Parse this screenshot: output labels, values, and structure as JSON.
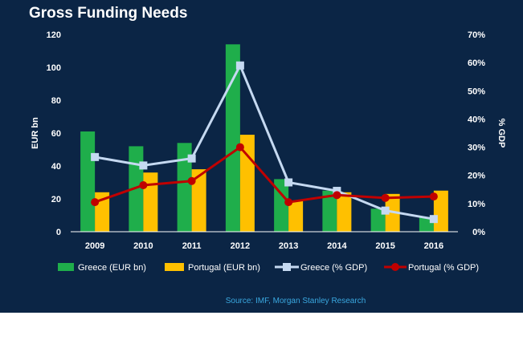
{
  "chart_data": {
    "type": "bar",
    "title": "Gross Funding Needs",
    "categories": [
      "2009",
      "2010",
      "2011",
      "2012",
      "2013",
      "2014",
      "2015",
      "2016"
    ],
    "bar_series": [
      {
        "name": "Greece (EUR bn)",
        "values": [
          61,
          52,
          54,
          114,
          32,
          25,
          14,
          9
        ]
      },
      {
        "name": "Portugal (EUR bn)",
        "values": [
          24,
          36,
          38,
          59,
          19,
          24,
          23,
          25
        ]
      }
    ],
    "line_series": [
      {
        "name": "Greece (% GDP)",
        "values": [
          26.5,
          23.5,
          26,
          59,
          17.5,
          14.5,
          7.5,
          4.5
        ]
      },
      {
        "name": "Portugal (% GDP)",
        "values": [
          10.5,
          16.5,
          18,
          30,
          10.5,
          13,
          12,
          12.5
        ]
      }
    ],
    "ylabel_left": "EUR bn",
    "ylabel_right": "% GDP",
    "ylim_left": [
      0,
      120
    ],
    "ylim_right": [
      0,
      70
    ],
    "yticks_left": [
      "0",
      "20",
      "40",
      "60",
      "80",
      "100",
      "120"
    ],
    "yticks_right": [
      "0%",
      "10%",
      "20%",
      "30%",
      "40%",
      "50%",
      "60%",
      "70%"
    ],
    "grid": false,
    "legend_position": "bottom",
    "source": "Source:  IMF, Morgan Stanley Research"
  },
  "colors": {
    "background": "#0b2545",
    "greece_bar": "#1fae4b",
    "portugal_bar": "#ffc000",
    "greece_line": "#c5d9f1",
    "portugal_line": "#c00000",
    "text": "#ffffff",
    "source_text": "#3aa8e0"
  }
}
